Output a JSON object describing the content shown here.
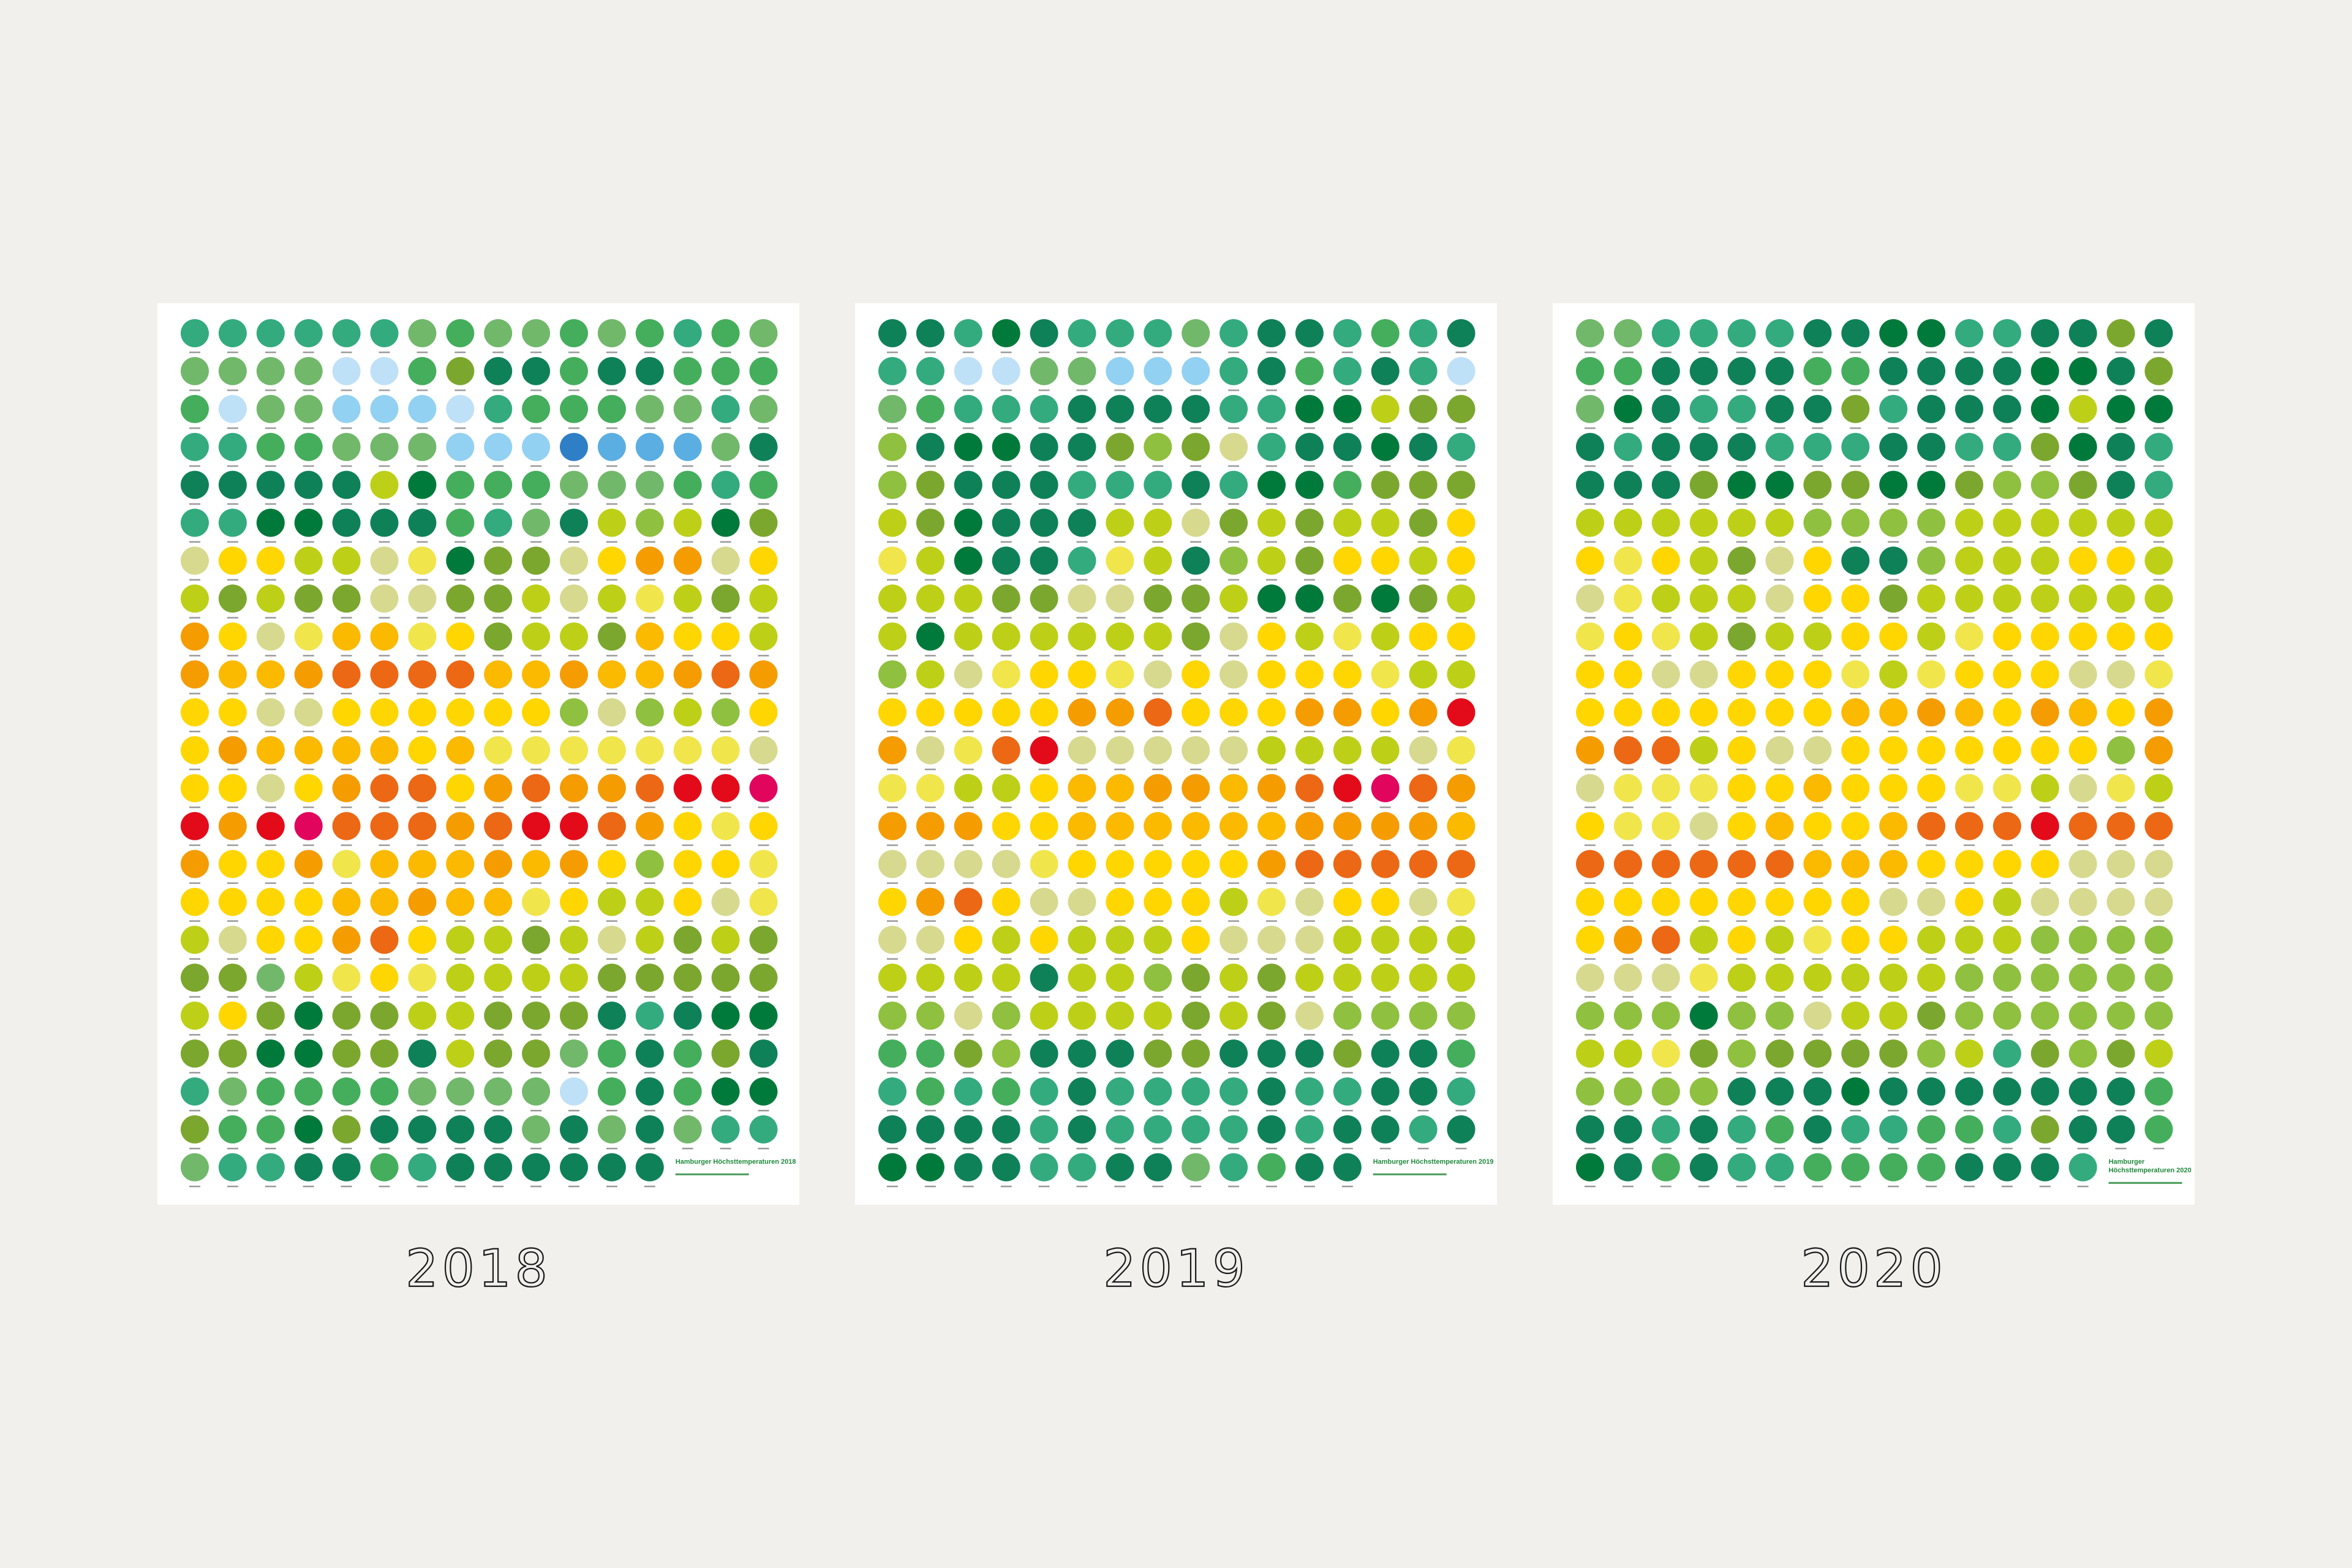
{
  "palette": {
    "a": "#0f8159",
    "b": "#007a3b",
    "c": "#33ab7f",
    "d": "#44ae5c",
    "e": "#71b86b",
    "f": "#7ca72e",
    "g": "#8fc040",
    "h": "#bdd017",
    "i": "#d7d98e",
    "j": "#f1e54c",
    "k": "#ffd600",
    "l": "#fbb900",
    "m": "#f59c00",
    "n": "#ec6815",
    "o": "#e30b1a",
    "p": "#e2055d",
    "q": "#bfe1f7",
    "r": "#92d1f1",
    "s": "#5aaee2",
    "t": "#2f7fc6"
  },
  "posters": [
    {
      "year": "2018",
      "title_lines": [
        "Hamburger Höchsttemperaturen 2018"
      ],
      "dot_rows": [
        "ccccccedeededcde",
        "eeeeqqdfaadaaddd",
        "dqeerrrqcdddeece",
        "ccddeeerrrtsssea",
        "aaaaahbdddeeedcd",
        "ccbbaaadceahghbf",
        "ikkhhijbffikmmik",
        "hfhffiiffhihjhfh",
        "mkijlljkfhhflkkh",
        "mllmnnnnllmllmnm",
        "kkiikkkkkkgighgk",
        "kmllllkljjjjjjji",
        "kkikmnnkmnmmnoop",
        "omopnnnmnoonmkjk",
        "mkkmjlllmlmkgkkj",
        "kkkkllmlljkhhkij",
        "hikkmnkhhfhihfhf",
        "ffehjkjhhhhfffff",
        "hkfbffhhfffacabb",
        "ffbbffahffedadfa",
        "ceddddeeeeqdadbb",
        "fddbfaaaaeaeaecc",
        "eccaadcaaaaaa"
      ]
    },
    {
      "year": "2019",
      "title_lines": [
        "Hamburger Höchsttemperaturen 2019"
      ],
      "dot_rows": [
        "aacbacccecaacdca",
        "ccqqeerrrcadcacq",
        "edcccaaaaccbbhff",
        "gabbaafgficaabac",
        "gfaaacccacbbdfff",
        "hfbaaahhifhfhhfk",
        "jhbaacjhaghfkkhk",
        "hhhffiiffhbbfbfh",
        "hbhhhhhhfikhjhkk",
        "ghijkkjikikkkjhh",
        "kkkkkmmnkkkmmkmo",
        "mijnoiiiiihhhhij",
        "jjhhkllmmlmnopnm",
        "mmmkkllllllmmmml",
        "iiiijkkkkkmnnnnn",
        "kmnkiikkkhjikkij",
        "iikhkhhhkiiihhhh",
        "hhhhahhgfhfhhhhh",
        "ggighhhhfhfigggg",
        "ddfgaaaffaaafaad",
        "cdcdcaccccaccaac",
        "aaaacaccccacaaca",
        "bbaaccaaecdaa"
      ]
    },
    {
      "year": "2020",
      "title_lines": [
        "Hamburger",
        "Höchsttemperaturen 2020"
      ],
      "dot_rows": [
        "eeccccaabbccaafa",
        "ddaaaaddaaaabbaf",
        "ebaccaafcaaabhbb",
        "acaaacccaaccfbac",
        "aaafbbffbbfggfac",
        "hhhhhhgggghhhhhh",
        "kjkhfikaaghhhkkh",
        "ijhhhikkfhhhhhhh",
        "jkjhfhhkkhjkkkkk",
        "kkiikkkjhjkkkiij",
        "kkkkkkkllmlkmlkm",
        "mnnhkiikkkkkkkgm",
        "ijjjkklkkkjjhijh",
        "kjjiklkklnnnonnn",
        "nnnnnnlllkkkkiii",
        "kkkkkkkkiikhiiii",
        "kmnhkhjkkhhhgggg",
        "iiijhhhhhhgggggg",
        "gggbggihhfgggggg",
        "hhjfgffffghcfgfh",
        "ggggaaabaaaaaaad",
        "aacacdaccddcfaad",
        "badaccddddaaac"
      ]
    }
  ]
}
